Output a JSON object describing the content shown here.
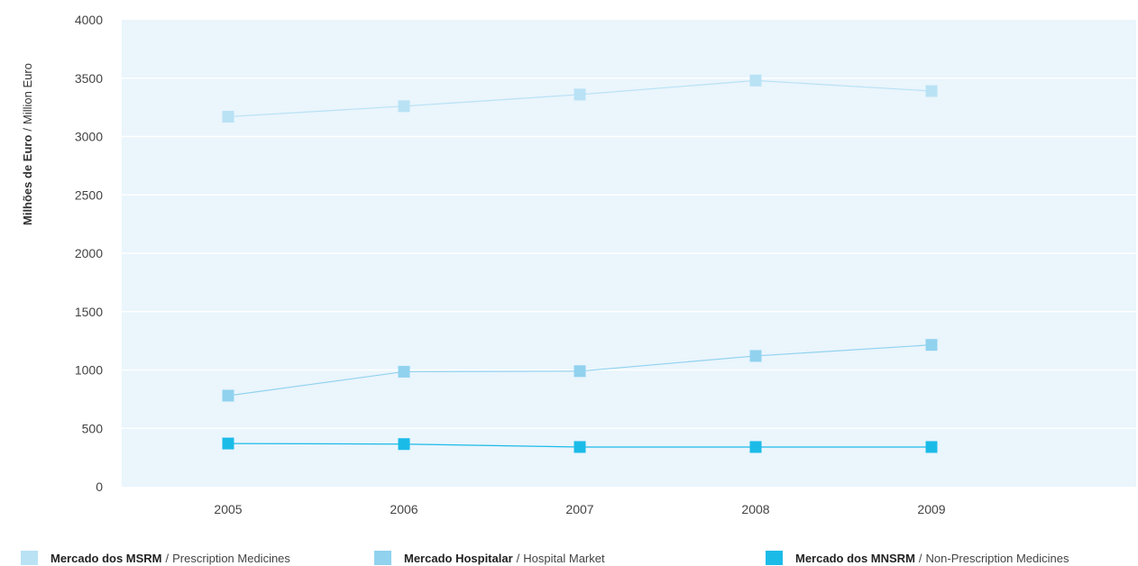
{
  "chart_data": {
    "type": "line",
    "ylabel_bold": "Milhões de Euro",
    "ylabel_sep": "/",
    "ylabel_light": "Million Euro",
    "x": [
      "2005",
      "2006",
      "2007",
      "2008",
      "2009"
    ],
    "ylim": [
      0,
      4000
    ],
    "yticks": [
      0,
      500,
      1000,
      1500,
      2000,
      2500,
      3000,
      3500,
      4000
    ],
    "grid": true,
    "legend_position": "bottom",
    "plot_background": "#eaf5fc",
    "series": [
      {
        "name_bold": "Mercado dos MSRM",
        "name_sep": "/",
        "name_light": "Prescription Medicines",
        "values": [
          3170,
          3260,
          3360,
          3480,
          3390
        ],
        "color": "#b9e2f5"
      },
      {
        "name_bold": "Mercado Hospitalar",
        "name_sep": "/",
        "name_light": "Hospital Market",
        "values": [
          780,
          985,
          990,
          1120,
          1215
        ],
        "color": "#91d2ef"
      },
      {
        "name_bold": "Mercado dos MNSRM",
        "name_sep": "/",
        "name_light": "Non-Prescription Medicines",
        "values": [
          370,
          365,
          340,
          340,
          340
        ],
        "color": "#1bbbe8"
      }
    ]
  }
}
